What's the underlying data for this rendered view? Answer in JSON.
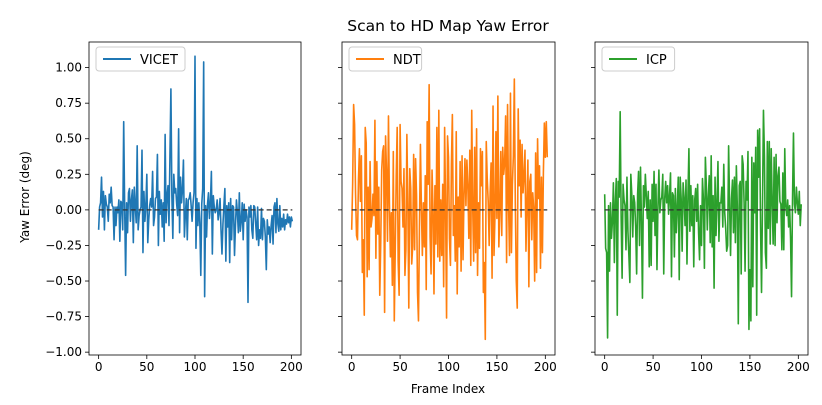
{
  "figure": {
    "title": "Scan to HD Map Yaw Error",
    "xlabel": "Frame Index",
    "ylabel": "Yaw Error (deg)"
  },
  "chart_data": [
    {
      "type": "line",
      "series": [
        {
          "name": "VICET",
          "color": "#1f77b4",
          "values": [
            -0.14,
            0.02,
            0.05,
            0.23,
            -0.05,
            0.13,
            -0.14,
            0.1,
            0.04,
            0.02,
            -0.08,
            0.11,
            0.05,
            0.16,
            0.03,
            0.02,
            -0.21,
            0.02,
            -0.11,
            0.02,
            -0.02,
            0.07,
            -0.22,
            0.06,
            0.05,
            -0.14,
            0.62,
            0.02,
            -0.46,
            0.05,
            -0.16,
            0.12,
            0.15,
            -0.08,
            0.07,
            0.14,
            -0.23,
            0.16,
            0.03,
            -0.09,
            0.45,
            -0.14,
            -0.04,
            0.0,
            0.02,
            0.42,
            -0.3,
            0.13,
            -0.08,
            0.03,
            0.25,
            -0.23,
            -0.07,
            0.03,
            0.08,
            0.02,
            0.27,
            -0.11,
            -0.05,
            0.08,
            0.09,
            0.39,
            -0.25,
            0.13,
            -0.03,
            0.07,
            -0.12,
            0.05,
            -0.22,
            0.53,
            -0.09,
            0.1,
            0.17,
            -0.11,
            0.38,
            0.85,
            0.1,
            -0.2,
            0.25,
            0.12,
            0.15,
            0.04,
            -0.04,
            0.57,
            -0.16,
            0.23,
            0.05,
            0.14,
            0.35,
            -0.19,
            -0.03,
            0.08,
            -0.21,
            0.07,
            0.08,
            0.12,
            0.03,
            -0.08,
            0.05,
            0.12,
            1.08,
            -0.27,
            0.08,
            -0.11,
            0.05,
            -0.09,
            -0.46,
            0.04,
            0.15,
            1.04,
            -0.61,
            0.03,
            -0.19,
            0.04,
            0.12,
            -0.06,
            0.05,
            0.27,
            -0.31,
            0.1,
            0.02,
            -0.02,
            0.0,
            0.07,
            -0.07,
            -0.02,
            0.08,
            -0.14,
            -0.31,
            -0.1,
            0.03,
            0.15,
            -0.36,
            0.03,
            -0.12,
            0.05,
            -0.37,
            0.08,
            -0.21,
            0.03,
            0.02,
            -0.32,
            -0.11,
            0.07,
            -0.02,
            -0.16,
            0.12,
            -0.15,
            -0.08,
            0.05,
            -0.21,
            0.04,
            -0.08,
            0.0,
            -0.05,
            -0.65,
            0.02,
            -0.05,
            0.03,
            -0.14,
            -0.2,
            0.03,
            0.02,
            -0.1,
            -0.21,
            0.02,
            -0.25,
            -0.14,
            -0.2,
            0.01,
            -0.21,
            -0.06,
            -0.08,
            -0.19,
            -0.42,
            -0.07,
            -0.17,
            -0.12,
            -0.23,
            -0.11,
            -0.04,
            -0.24,
            0.02,
            0.05,
            -0.16,
            0.08,
            -0.1,
            -0.15,
            0.03,
            -0.14,
            -0.06,
            -0.12,
            -0.03,
            -0.14,
            -0.07,
            -0.1,
            -0.03,
            -0.09,
            -0.05,
            -0.12,
            -0.05,
            -0.08
          ]
        }
      ],
      "reference_line": 0,
      "xlim": [
        -10,
        210
      ],
      "ylim": [
        -1.02,
        1.18
      ],
      "x_ticks": [
        0,
        50,
        100,
        150,
        200
      ],
      "y_ticks": [
        -1.0,
        -0.75,
        -0.5,
        -0.25,
        0.0,
        0.25,
        0.5,
        0.75,
        1.0
      ],
      "y_tick_labels": [
        "−1.00",
        "−0.75",
        "−0.50",
        "−0.25",
        "0.00",
        "0.25",
        "0.50",
        "0.75",
        "1.00"
      ],
      "legend": "top-left"
    },
    {
      "type": "line",
      "series": [
        {
          "name": "NDT",
          "color": "#ff7f0e",
          "values": [
            -0.14,
            0.18,
            0.74,
            0.6,
            0.11,
            -0.18,
            -0.21,
            0.21,
            0.43,
            0.06,
            0.38,
            -0.44,
            -0.21,
            -0.74,
            0.58,
            0.47,
            -0.47,
            0.16,
            -0.42,
            0.34,
            -0.12,
            -0.06,
            0.11,
            -0.04,
            0.63,
            -0.34,
            0.34,
            -0.17,
            0.16,
            -0.6,
            -0.24,
            0.28,
            0.41,
            0.45,
            -0.72,
            0.52,
            0.26,
            -0.22,
            0.66,
            0.04,
            -0.33,
            -0.02,
            -0.53,
            0.41,
            -0.78,
            -0.28,
            0.24,
            0.58,
            -0.36,
            -0.6,
            0.6,
            0.2,
            0.15,
            -0.12,
            0.29,
            -0.46,
            -0.28,
            0.53,
            0.04,
            -0.69,
            0.29,
            0.15,
            -0.38,
            -0.26,
            0.39,
            -0.28,
            0.36,
            0.1,
            -0.58,
            -0.78,
            -0.12,
            0.46,
            0.02,
            -0.32,
            0.05,
            -0.26,
            0.24,
            -0.56,
            0.62,
            0.18,
            0.88,
            -0.19,
            -0.45,
            0.28,
            0.0,
            -0.59,
            0.17,
            -0.24,
            0.58,
            -0.33,
            0.7,
            -0.36,
            0.07,
            -0.32,
            0.18,
            -0.54,
            0.58,
            0.0,
            -0.76,
            0.52,
            0.37,
            -0.2,
            -0.39,
            0.32,
            0.67,
            -0.18,
            0.03,
            -0.36,
            0.55,
            -0.59,
            0.09,
            -0.26,
            0.34,
            -0.43,
            0.38,
            -0.35,
            0.11,
            0.36,
            0.03,
            0.35,
            0.17,
            -0.2,
            0.42,
            -0.39,
            0.7,
            0.02,
            -0.36,
            0.44,
            -0.3,
            0.57,
            -0.46,
            0.05,
            -0.27,
            0.43,
            0.17,
            0.41,
            -0.58,
            -0.37,
            -0.91,
            0.48,
            0.22,
            0.06,
            -0.25,
            0.12,
            0.33,
            -0.48,
            0.73,
            -0.32,
            -0.04,
            0.55,
            -0.06,
            0.8,
            -0.26,
            -0.02,
            0.41,
            -0.18,
            0.44,
            0.25,
            0.33,
            0.66,
            -0.37,
            0.74,
            0.06,
            -0.32,
            0.82,
            -0.3,
            0.18,
            0.38,
            0.92,
            0.06,
            -0.5,
            -0.69,
            0.71,
            0.17,
            0.49,
            -0.05,
            0.46,
            0.12,
            0.24,
            0.42,
            -0.29,
            0.04,
            0.35,
            -0.54,
            0.2,
            0.25,
            -0.21,
            0.12,
            0.01,
            -0.5,
            0.4,
            -0.44,
            0.5,
            0.08,
            0.31,
            -0.41,
            0.23,
            -0.3,
            0.26,
            0.61,
            0.37,
            0.62,
            0.37
          ]
        }
      ],
      "reference_line": 0,
      "xlim": [
        -10,
        210
      ],
      "ylim": [
        -1.02,
        1.18
      ],
      "x_ticks": [
        0,
        50,
        100,
        150,
        200
      ],
      "legend": "top-left"
    },
    {
      "type": "line",
      "series": [
        {
          "name": "ICP",
          "color": "#2ca02c",
          "values": [
            0.11,
            -0.27,
            -0.3,
            -0.9,
            0.03,
            -0.43,
            0.05,
            -0.2,
            -0.08,
            0.19,
            -0.37,
            0.06,
            0.22,
            -0.74,
            0.2,
            0.09,
            0.69,
            -0.05,
            -0.48,
            0.18,
            0.07,
            0.03,
            -0.28,
            0.23,
            -0.15,
            -0.32,
            -0.51,
            0.25,
            0.11,
            -0.19,
            0.1,
            0.05,
            -0.12,
            -0.45,
            0.11,
            0.27,
            -0.25,
            0.3,
            -0.08,
            -0.62,
            0.17,
            0.02,
            0.25,
            0.1,
            -0.06,
            0.13,
            -0.4,
            0.07,
            -0.39,
            0.18,
            -0.08,
            0.27,
            -0.18,
            0.18,
            -0.42,
            0.02,
            0.28,
            -0.02,
            0.07,
            0.09,
            0.25,
            -0.45,
            0.08,
            0.2,
            0.05,
            0.17,
            -0.03,
            0.1,
            0.26,
            -0.47,
            0.12,
            0.1,
            -0.33,
            0.15,
            -0.16,
            0.02,
            0.23,
            -0.49,
            0.23,
            0.08,
            -0.29,
            0.19,
            0.08,
            -0.11,
            0.21,
            -0.38,
            0.1,
            0.43,
            -0.15,
            0.17,
            -0.11,
            0.1,
            -0.4,
            0.07,
            0.15,
            -0.08,
            0.18,
            -0.16,
            -0.35,
            0.03,
            -0.25,
            0.22,
            0.07,
            -0.41,
            0.37,
            0.17,
            -0.14,
            0.09,
            0.24,
            -0.23,
            0.38,
            -0.26,
            0.1,
            -0.55,
            0.23,
            -0.18,
            0.05,
            0.34,
            -0.22,
            0.05,
            0.05,
            0.16,
            -0.12,
            0.32,
            -0.02,
            -0.13,
            -0.29,
            -0.25,
            0.45,
            0.05,
            -0.32,
            0.08,
            0.21,
            -0.16,
            0.23,
            -0.23,
            0.31,
            0.02,
            -0.8,
            0.17,
            0.2,
            -0.45,
            0.38,
            0.32,
            0.05,
            -0.43,
            0.2,
            0.07,
            0.41,
            -0.84,
            -0.42,
            -0.78,
            0.37,
            -0.54,
            0.33,
            -0.02,
            0.44,
            -0.74,
            0.56,
            0.23,
            0.57,
            -0.12,
            -0.58,
            0.04,
            0.7,
            0.38,
            -0.3,
            -0.41,
            0.48,
            -0.13,
            0.48,
            -0.24,
            0.43,
            0.05,
            -0.24,
            0.37,
            -0.25,
            0.39,
            -0.09,
            0.24,
            0.3,
            0.06,
            0.04,
            -0.28,
            0.26,
            -0.28,
            0.43,
            0.03,
            -0.04,
            0.07,
            -0.12,
            0.03,
            -0.2,
            -0.61,
            0.07,
            0.54,
            0.04,
            -0.02,
            0.16,
            0.05,
            -0.03,
            0.13,
            -0.11,
            0.04
          ]
        }
      ],
      "reference_line": 0,
      "xlim": [
        -10,
        210
      ],
      "ylim": [
        -1.02,
        1.18
      ],
      "x_ticks": [
        0,
        50,
        100,
        150,
        200
      ],
      "legend": "top-left"
    }
  ]
}
